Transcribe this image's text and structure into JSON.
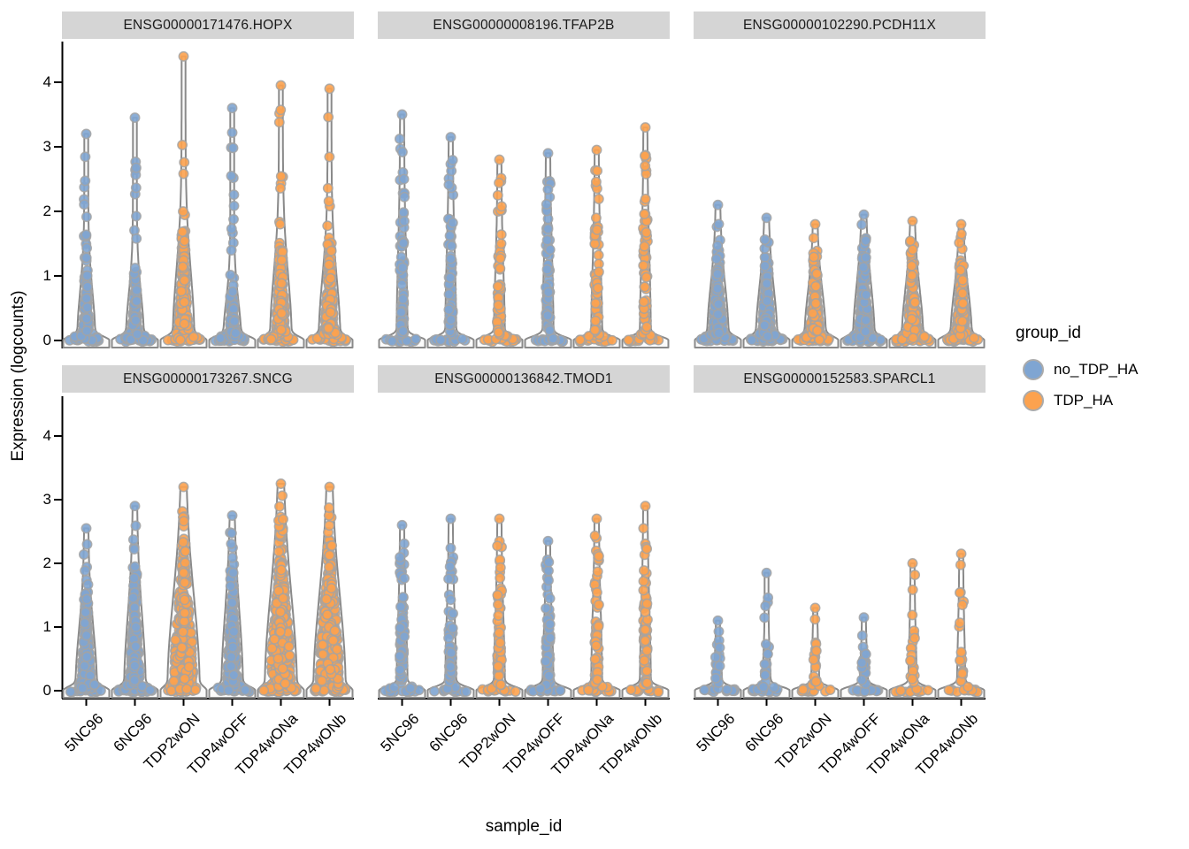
{
  "figure": {
    "y_axis_title": "Expression (logcounts)",
    "x_axis_title": "sample_id",
    "y_ticks": [
      0,
      1,
      2,
      3,
      4
    ]
  },
  "legend": {
    "title": "group_id",
    "items": [
      {
        "label": "no_TDP_HA",
        "color": "#7FA5D2"
      },
      {
        "label": "TDP_HA",
        "color": "#FCA24F"
      }
    ]
  },
  "colors": {
    "no_TDP_HA": "#7FA5D2",
    "TDP_HA": "#FCA24F",
    "point_stroke": "#A3A3A3",
    "violin_stroke": "#8A8A8A",
    "violin_fill": "#FAFAFA",
    "strip_bg": "#D5D5D5",
    "axis": "#000000"
  },
  "chart_data": {
    "type": "violin+jitter",
    "x_categories": [
      "5NC96",
      "6NC96",
      "TDP2wON",
      "TDP4wOFF",
      "TDP4wONa",
      "TDP4wONb"
    ],
    "ylim": [
      0,
      4.6
    ],
    "xlabel": "sample_id",
    "ylabel": "Expression (logcounts)",
    "legend_title": "group_id",
    "groups": [
      "no_TDP_HA",
      "TDP_HA"
    ],
    "facets": [
      {
        "gene": "ENSG00000171476.HOPX",
        "violins": [
          {
            "sample": "5NC96",
            "group": "no_TDP_HA",
            "max": 3.2,
            "cluster_top": 1.5,
            "density": "medium"
          },
          {
            "sample": "6NC96",
            "group": "no_TDP_HA",
            "max": 3.45,
            "cluster_top": 1.4,
            "density": "medium"
          },
          {
            "sample": "TDP2wON",
            "group": "TDP_HA",
            "max": 4.4,
            "cluster_top": 2.1,
            "density": "dense"
          },
          {
            "sample": "TDP4wOFF",
            "group": "no_TDP_HA",
            "max": 3.6,
            "cluster_top": 1.2,
            "density": "medium"
          },
          {
            "sample": "TDP4wONa",
            "group": "TDP_HA",
            "max": 3.95,
            "cluster_top": 2.0,
            "density": "dense"
          },
          {
            "sample": "TDP4wONb",
            "group": "TDP_HA",
            "max": 3.9,
            "cluster_top": 1.9,
            "density": "dense"
          }
        ]
      },
      {
        "gene": "ENSG00000008196.TFAP2B",
        "violins": [
          {
            "sample": "5NC96",
            "group": "no_TDP_HA",
            "max": 3.5,
            "cluster_top": 2.6,
            "density": "sparse"
          },
          {
            "sample": "6NC96",
            "group": "no_TDP_HA",
            "max": 3.15,
            "cluster_top": 2.5,
            "density": "sparse"
          },
          {
            "sample": "TDP2wON",
            "group": "TDP_HA",
            "max": 2.8,
            "cluster_top": 2.1,
            "density": "sparse"
          },
          {
            "sample": "TDP4wOFF",
            "group": "no_TDP_HA",
            "max": 2.9,
            "cluster_top": 2.5,
            "density": "sparse"
          },
          {
            "sample": "TDP4wONa",
            "group": "TDP_HA",
            "max": 2.95,
            "cluster_top": 2.3,
            "density": "sparse"
          },
          {
            "sample": "TDP4wONb",
            "group": "TDP_HA",
            "max": 3.3,
            "cluster_top": 2.5,
            "density": "sparse"
          }
        ]
      },
      {
        "gene": "ENSG00000102290.PCDH11X",
        "violins": [
          {
            "sample": "5NC96",
            "group": "no_TDP_HA",
            "max": 2.1,
            "cluster_top": 1.7,
            "density": "dense"
          },
          {
            "sample": "6NC96",
            "group": "no_TDP_HA",
            "max": 1.9,
            "cluster_top": 1.6,
            "density": "dense"
          },
          {
            "sample": "TDP2wON",
            "group": "TDP_HA",
            "max": 1.8,
            "cluster_top": 1.5,
            "density": "dense"
          },
          {
            "sample": "TDP4wOFF",
            "group": "no_TDP_HA",
            "max": 1.95,
            "cluster_top": 1.7,
            "density": "dense"
          },
          {
            "sample": "TDP4wONa",
            "group": "TDP_HA",
            "max": 1.85,
            "cluster_top": 1.55,
            "density": "dense"
          },
          {
            "sample": "TDP4wONb",
            "group": "TDP_HA",
            "max": 1.8,
            "cluster_top": 1.5,
            "density": "dense"
          }
        ]
      },
      {
        "gene": "ENSG00000173267.SNCG",
        "violins": [
          {
            "sample": "5NC96",
            "group": "no_TDP_HA",
            "max": 2.55,
            "cluster_top": 1.9,
            "density": "dense"
          },
          {
            "sample": "6NC96",
            "group": "no_TDP_HA",
            "max": 2.9,
            "cluster_top": 2.3,
            "density": "dense"
          },
          {
            "sample": "TDP2wON",
            "group": "TDP_HA",
            "max": 3.2,
            "cluster_top": 2.9,
            "density": "very_dense"
          },
          {
            "sample": "TDP4wOFF",
            "group": "no_TDP_HA",
            "max": 2.75,
            "cluster_top": 2.4,
            "density": "dense"
          },
          {
            "sample": "TDP4wONa",
            "group": "TDP_HA",
            "max": 3.25,
            "cluster_top": 3.0,
            "density": "very_dense"
          },
          {
            "sample": "TDP4wONb",
            "group": "TDP_HA",
            "max": 3.2,
            "cluster_top": 2.9,
            "density": "very_dense"
          }
        ]
      },
      {
        "gene": "ENSG00000136842.TMOD1",
        "violins": [
          {
            "sample": "5NC96",
            "group": "no_TDP_HA",
            "max": 2.6,
            "cluster_top": 2.1,
            "density": "sparse"
          },
          {
            "sample": "6NC96",
            "group": "no_TDP_HA",
            "max": 2.7,
            "cluster_top": 2.2,
            "density": "sparse"
          },
          {
            "sample": "TDP2wON",
            "group": "TDP_HA",
            "max": 2.7,
            "cluster_top": 2.2,
            "density": "sparse"
          },
          {
            "sample": "TDP4wOFF",
            "group": "no_TDP_HA",
            "max": 2.35,
            "cluster_top": 1.9,
            "density": "sparse"
          },
          {
            "sample": "TDP4wONa",
            "group": "TDP_HA",
            "max": 2.7,
            "cluster_top": 2.4,
            "density": "sparse"
          },
          {
            "sample": "TDP4wONb",
            "group": "TDP_HA",
            "max": 2.9,
            "cluster_top": 2.5,
            "density": "sparse"
          }
        ]
      },
      {
        "gene": "ENSG00000152583.SPARCL1",
        "violins": [
          {
            "sample": "5NC96",
            "group": "no_TDP_HA",
            "max": 1.1,
            "cluster_top": 0.9,
            "density": "very_sparse"
          },
          {
            "sample": "6NC96",
            "group": "no_TDP_HA",
            "max": 1.85,
            "cluster_top": 1.0,
            "density": "very_sparse"
          },
          {
            "sample": "TDP2wON",
            "group": "TDP_HA",
            "max": 1.3,
            "cluster_top": 1.1,
            "density": "very_sparse"
          },
          {
            "sample": "TDP4wOFF",
            "group": "no_TDP_HA",
            "max": 1.15,
            "cluster_top": 0.95,
            "density": "very_sparse"
          },
          {
            "sample": "TDP4wONa",
            "group": "TDP_HA",
            "max": 2.0,
            "cluster_top": 1.6,
            "density": "very_sparse"
          },
          {
            "sample": "TDP4wONb",
            "group": "TDP_HA",
            "max": 2.15,
            "cluster_top": 1.7,
            "density": "very_sparse"
          }
        ]
      }
    ]
  }
}
